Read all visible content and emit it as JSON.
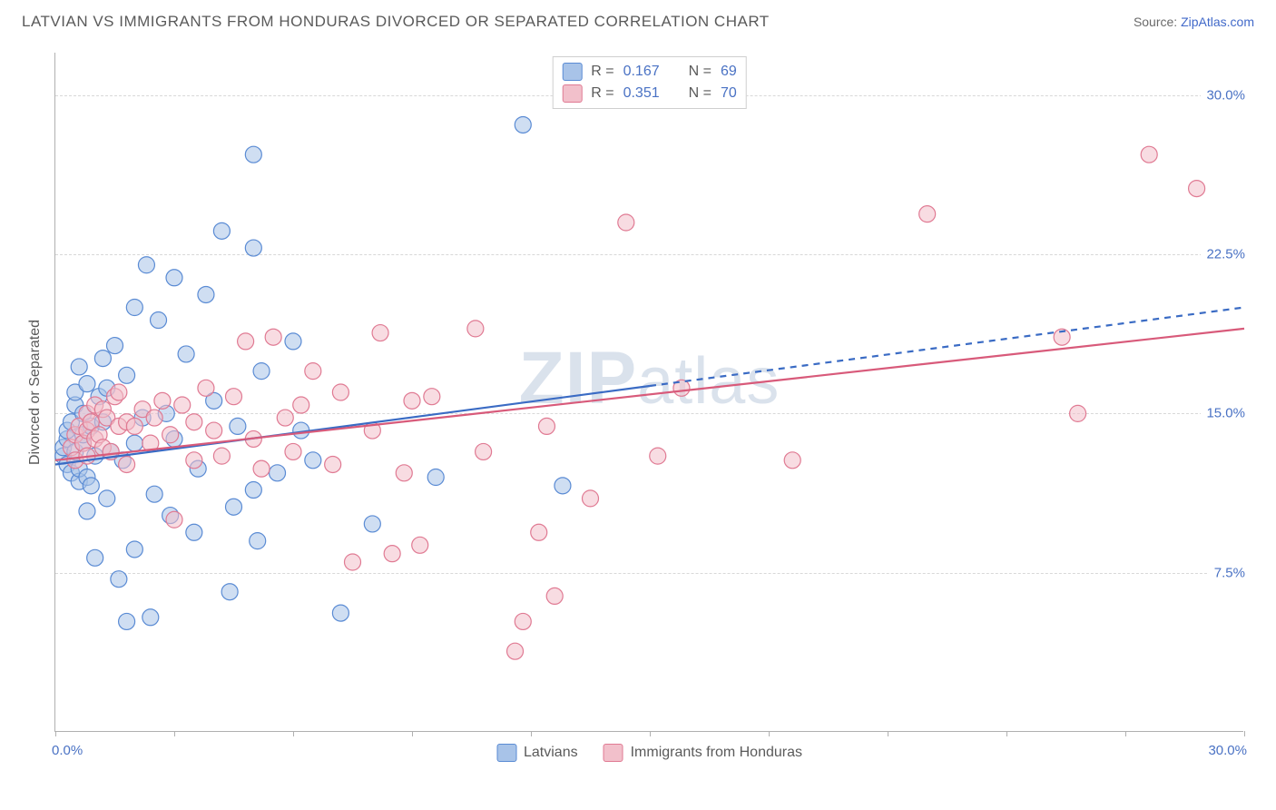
{
  "title": "LATVIAN VS IMMIGRANTS FROM HONDURAS DIVORCED OR SEPARATED CORRELATION CHART",
  "source_prefix": "Source: ",
  "source_name": "ZipAtlas.com",
  "watermark": "ZIPatlas",
  "chart": {
    "type": "scatter",
    "background_color": "#ffffff",
    "grid_color": "#d8d8d8",
    "axis_color": "#b0b0b0",
    "text_color": "#5a5a5a",
    "value_color": "#4a72c4",
    "title_fontsize": 17,
    "tick_fontsize": 15,
    "y_axis_title": "Divorced or Separated",
    "xlim": [
      0,
      30
    ],
    "ylim": [
      0,
      32
    ],
    "x_ticks": [
      0,
      3,
      6,
      9,
      12,
      15,
      18,
      21,
      24,
      27,
      30
    ],
    "x_tick_labels": {
      "0": "0.0%",
      "30": "30.0%"
    },
    "y_grid": [
      7.5,
      15.0,
      22.5,
      30.0
    ],
    "y_tick_labels": [
      "7.5%",
      "15.0%",
      "22.5%",
      "30.0%"
    ],
    "marker_radius": 9,
    "marker_opacity": 0.55,
    "line_width": 2.2,
    "series": [
      {
        "key": "latvians",
        "label": "Latvians",
        "marker_fill": "#a8c3e8",
        "marker_stroke": "#5a8bd4",
        "line_color": "#3a6bc4",
        "dash_after_x": 15,
        "R": "0.167",
        "N": "69",
        "trend": {
          "x1": 0,
          "y1": 12.6,
          "x2": 30,
          "y2": 20.0
        },
        "points": [
          [
            0.2,
            13.0
          ],
          [
            0.2,
            13.4
          ],
          [
            0.3,
            13.8
          ],
          [
            0.3,
            12.6
          ],
          [
            0.3,
            14.2
          ],
          [
            0.4,
            14.6
          ],
          [
            0.4,
            12.2
          ],
          [
            0.5,
            13.2
          ],
          [
            0.5,
            15.4
          ],
          [
            0.5,
            16.0
          ],
          [
            0.6,
            11.8
          ],
          [
            0.6,
            12.4
          ],
          [
            0.6,
            17.2
          ],
          [
            0.7,
            13.6
          ],
          [
            0.7,
            14.0
          ],
          [
            0.7,
            15.0
          ],
          [
            0.8,
            12.0
          ],
          [
            0.8,
            16.4
          ],
          [
            0.8,
            10.4
          ],
          [
            0.9,
            14.4
          ],
          [
            0.9,
            11.6
          ],
          [
            1.0,
            13.0
          ],
          [
            1.0,
            8.2
          ],
          [
            1.1,
            15.8
          ],
          [
            1.2,
            14.6
          ],
          [
            1.2,
            17.6
          ],
          [
            1.3,
            11.0
          ],
          [
            1.3,
            16.2
          ],
          [
            1.4,
            13.2
          ],
          [
            1.5,
            18.2
          ],
          [
            1.6,
            7.2
          ],
          [
            1.7,
            12.8
          ],
          [
            1.8,
            16.8
          ],
          [
            1.8,
            5.2
          ],
          [
            2.0,
            8.6
          ],
          [
            2.0,
            13.6
          ],
          [
            2.0,
            20.0
          ],
          [
            2.2,
            14.8
          ],
          [
            2.3,
            22.0
          ],
          [
            2.4,
            5.4
          ],
          [
            2.5,
            11.2
          ],
          [
            2.6,
            19.4
          ],
          [
            2.8,
            15.0
          ],
          [
            2.9,
            10.2
          ],
          [
            3.0,
            21.4
          ],
          [
            3.0,
            13.8
          ],
          [
            3.3,
            17.8
          ],
          [
            3.5,
            9.4
          ],
          [
            3.6,
            12.4
          ],
          [
            3.8,
            20.6
          ],
          [
            4.0,
            15.6
          ],
          [
            4.2,
            23.6
          ],
          [
            4.4,
            6.6
          ],
          [
            4.5,
            10.6
          ],
          [
            4.6,
            14.4
          ],
          [
            5.0,
            27.2
          ],
          [
            5.0,
            22.8
          ],
          [
            5.0,
            11.4
          ],
          [
            5.1,
            9.0
          ],
          [
            5.2,
            17.0
          ],
          [
            5.6,
            12.2
          ],
          [
            6.0,
            18.4
          ],
          [
            6.2,
            14.2
          ],
          [
            6.5,
            12.8
          ],
          [
            7.2,
            5.6
          ],
          [
            8.0,
            9.8
          ],
          [
            9.6,
            12.0
          ],
          [
            11.8,
            28.6
          ],
          [
            12.8,
            11.6
          ]
        ]
      },
      {
        "key": "honduras",
        "label": "Immigrants from Honduras",
        "marker_fill": "#f2c0cb",
        "marker_stroke": "#e07a93",
        "line_color": "#d85a7a",
        "dash_after_x": null,
        "R": "0.351",
        "N": "70",
        "trend": {
          "x1": 0,
          "y1": 12.8,
          "x2": 30,
          "y2": 19.0
        },
        "points": [
          [
            0.4,
            13.4
          ],
          [
            0.5,
            14.0
          ],
          [
            0.5,
            12.8
          ],
          [
            0.6,
            14.4
          ],
          [
            0.7,
            13.6
          ],
          [
            0.8,
            15.0
          ],
          [
            0.8,
            14.2
          ],
          [
            0.8,
            13.0
          ],
          [
            0.9,
            14.6
          ],
          [
            1.0,
            15.4
          ],
          [
            1.0,
            13.8
          ],
          [
            1.1,
            14.0
          ],
          [
            1.2,
            15.2
          ],
          [
            1.2,
            13.4
          ],
          [
            1.3,
            14.8
          ],
          [
            1.4,
            13.2
          ],
          [
            1.5,
            15.8
          ],
          [
            1.6,
            14.4
          ],
          [
            1.6,
            16.0
          ],
          [
            1.8,
            14.6
          ],
          [
            1.8,
            12.6
          ],
          [
            2.0,
            14.4
          ],
          [
            2.2,
            15.2
          ],
          [
            2.4,
            13.6
          ],
          [
            2.5,
            14.8
          ],
          [
            2.7,
            15.6
          ],
          [
            2.9,
            14.0
          ],
          [
            3.0,
            10.0
          ],
          [
            3.2,
            15.4
          ],
          [
            3.5,
            14.6
          ],
          [
            3.5,
            12.8
          ],
          [
            3.8,
            16.2
          ],
          [
            4.0,
            14.2
          ],
          [
            4.2,
            13.0
          ],
          [
            4.5,
            15.8
          ],
          [
            4.8,
            18.4
          ],
          [
            5.0,
            13.8
          ],
          [
            5.2,
            12.4
          ],
          [
            5.5,
            18.6
          ],
          [
            5.8,
            14.8
          ],
          [
            6.0,
            13.2
          ],
          [
            6.2,
            15.4
          ],
          [
            6.5,
            17.0
          ],
          [
            7.0,
            12.6
          ],
          [
            7.2,
            16.0
          ],
          [
            7.5,
            8.0
          ],
          [
            8.0,
            14.2
          ],
          [
            8.2,
            18.8
          ],
          [
            8.5,
            8.4
          ],
          [
            8.8,
            12.2
          ],
          [
            9.0,
            15.6
          ],
          [
            9.2,
            8.8
          ],
          [
            9.5,
            15.8
          ],
          [
            10.6,
            19.0
          ],
          [
            10.8,
            13.2
          ],
          [
            11.6,
            3.8
          ],
          [
            11.8,
            5.2
          ],
          [
            12.2,
            9.4
          ],
          [
            12.4,
            14.4
          ],
          [
            12.6,
            6.4
          ],
          [
            13.5,
            11.0
          ],
          [
            14.4,
            24.0
          ],
          [
            15.2,
            13.0
          ],
          [
            15.8,
            16.2
          ],
          [
            18.6,
            12.8
          ],
          [
            22.0,
            24.4
          ],
          [
            25.4,
            18.6
          ],
          [
            25.8,
            15.0
          ],
          [
            27.6,
            27.2
          ],
          [
            28.8,
            25.6
          ]
        ]
      }
    ],
    "stat_legend_labels": {
      "R": "R =",
      "N": "N ="
    }
  }
}
